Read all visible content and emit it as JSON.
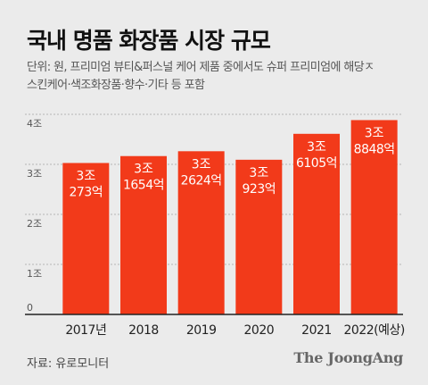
{
  "title": "국내 명품 화장품 시장 규모",
  "note": {
    "line1": "단위: 원, 프리미엄 뷰티&퍼스널 케어 제품 중에서도 슈퍼 프리미엄에 해당ㅈ",
    "line2": "스킨케어·색조화장품·향수·기타 등 포함"
  },
  "source": "자료: 유로모니터",
  "brand": "The JoongAng",
  "colors": {
    "bar": "#f23a1a",
    "grid": "#b5b5b5",
    "axis": "#222222",
    "label": "#ffffff"
  },
  "chart_data": {
    "type": "bar",
    "categories": [
      "2017년",
      "2018",
      "2019",
      "2020",
      "2021",
      "2022(예상)"
    ],
    "values": [
      30273,
      31654,
      32624,
      30923,
      36105,
      38848
    ],
    "unit": "억 원",
    "data_labels": [
      [
        "3조",
        "273억"
      ],
      [
        "3조",
        "1654억"
      ],
      [
        "3조",
        "2624억"
      ],
      [
        "3조",
        "923억"
      ],
      [
        "3조",
        "6105억"
      ],
      [
        "3조",
        "8848억"
      ]
    ],
    "yticks": [
      {
        "value": 0,
        "label": "0"
      },
      {
        "value": 10000,
        "label": "1조"
      },
      {
        "value": 20000,
        "label": "2조"
      },
      {
        "value": 30000,
        "label": "3조"
      },
      {
        "value": 40000,
        "label": "4조"
      }
    ],
    "ylim": [
      0,
      40000
    ],
    "grid": true,
    "legend": "none"
  }
}
